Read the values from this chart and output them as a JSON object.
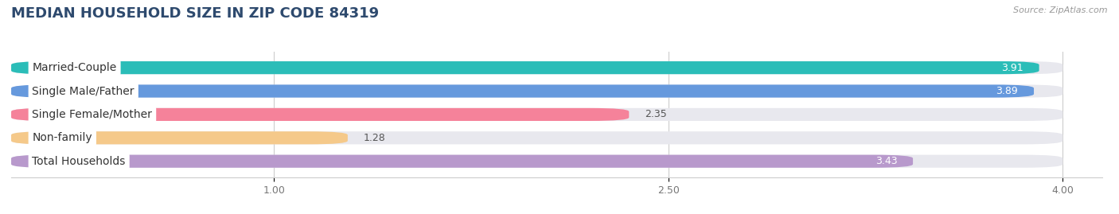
{
  "title": "MEDIAN HOUSEHOLD SIZE IN ZIP CODE 84319",
  "source": "Source: ZipAtlas.com",
  "categories": [
    "Married-Couple",
    "Single Male/Father",
    "Single Female/Mother",
    "Non-family",
    "Total Households"
  ],
  "values": [
    3.91,
    3.89,
    2.35,
    1.28,
    3.43
  ],
  "bar_colors": [
    "#2bbdb8",
    "#6699dd",
    "#f5829a",
    "#f5c98a",
    "#b899cc"
  ],
  "xlim": [
    0.0,
    4.15
  ],
  "xdata_max": 4.0,
  "xticks": [
    1.0,
    2.5,
    4.0
  ],
  "xtick_labels": [
    "1.00",
    "2.50",
    "4.00"
  ],
  "title_color": "#2e4a6e",
  "title_fontsize": 13,
  "label_fontsize": 10,
  "value_fontsize": 9,
  "bar_height": 0.55,
  "bar_gap": 0.45,
  "bar_bg_color": "#e8e8ee",
  "label_box_color": "#ffffff"
}
